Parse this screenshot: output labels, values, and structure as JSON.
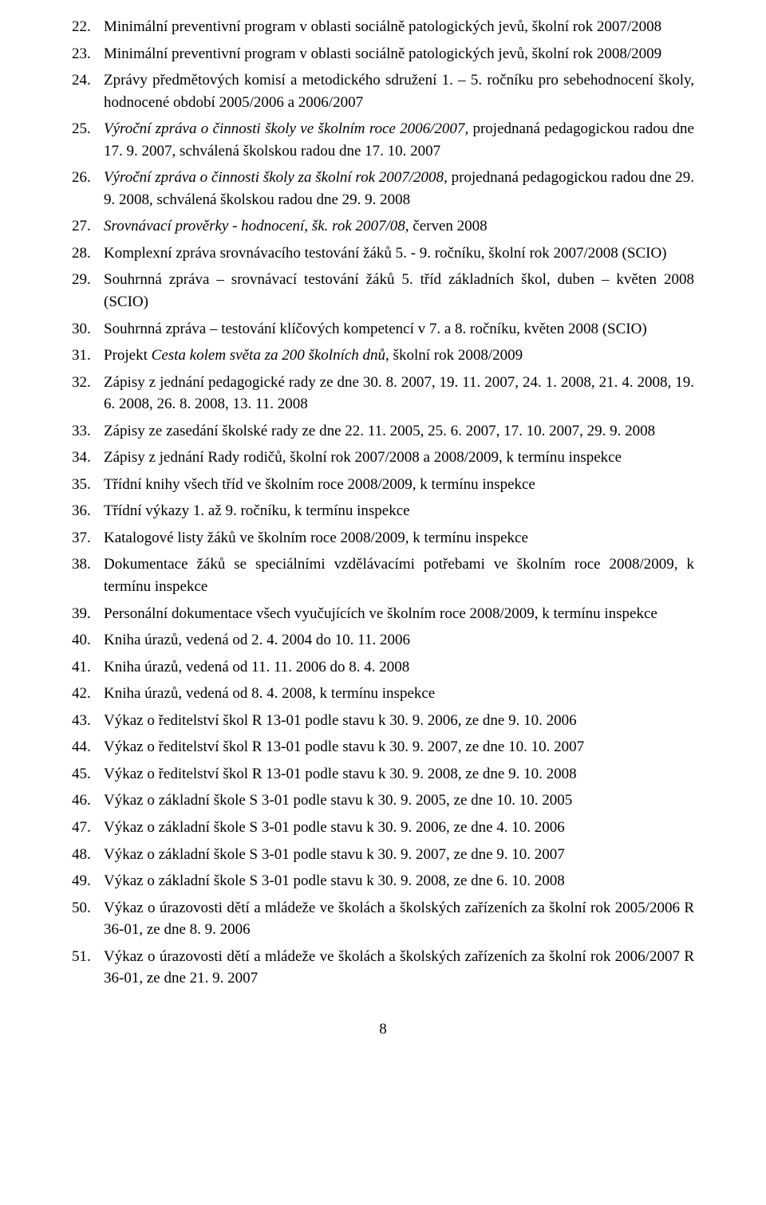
{
  "page_number": "8",
  "items": [
    {
      "n": "22.",
      "text": "Minimální preventivní program v oblasti sociálně patologických jevů, školní rok 2007/2008"
    },
    {
      "n": "23.",
      "text": "Minimální preventivní program v oblasti sociálně patologických jevů, školní rok 2008/2009"
    },
    {
      "n": "24.",
      "text": "Zprávy předmětových komisí a metodického sdružení 1. – 5. ročníku pro sebehodnocení školy, hodnocené období 2005/2006 a 2006/2007"
    },
    {
      "n": "25.",
      "runs": [
        {
          "t": "Výroční zpráva o činnosti školy ve školním roce 2006/2007",
          "italic": true
        },
        {
          "t": ", projednaná pedagogickou radou dne 17. 9. 2007, schválená školskou radou dne 17. 10. 2007",
          "italic": false
        }
      ]
    },
    {
      "n": "26.",
      "runs": [
        {
          "t": "Výroční zpráva o činnosti školy za školní rok 2007/2008",
          "italic": true
        },
        {
          "t": ", projednaná pedagogickou radou dne 29. 9. 2008, schválená školskou radou dne 29. 9. 2008",
          "italic": false
        }
      ]
    },
    {
      "n": "27.",
      "runs": [
        {
          "t": "Srovnávací prověrky - hodnocení, šk. rok 2007/08",
          "italic": true
        },
        {
          "t": ", červen 2008",
          "italic": false
        }
      ]
    },
    {
      "n": "28.",
      "text": "Komplexní zpráva srovnávacího testování žáků 5. - 9. ročníku, školní rok 2007/2008 (SCIO)"
    },
    {
      "n": "29.",
      "text": "Souhrnná zpráva – srovnávací testování žáků 5. tříd základních škol, duben – květen 2008 (SCIO)"
    },
    {
      "n": "30.",
      "text": "Souhrnná zpráva – testování klíčových kompetencí v 7. a 8. ročníku, květen 2008 (SCIO)"
    },
    {
      "n": "31.",
      "runs": [
        {
          "t": "Projekt ",
          "italic": false
        },
        {
          "t": "Cesta kolem světa za 200 školních dnů",
          "italic": true
        },
        {
          "t": ", školní rok 2008/2009",
          "italic": false
        }
      ]
    },
    {
      "n": "32.",
      "text": "Zápisy z jednání pedagogické rady ze dne 30. 8. 2007, 19. 11. 2007, 24. 1. 2008, 21. 4. 2008, 19. 6. 2008, 26. 8. 2008, 13. 11. 2008"
    },
    {
      "n": "33.",
      "text": "Zápisy ze zasedání školské rady ze dne 22. 11. 2005, 25. 6. 2007, 17. 10. 2007, 29. 9. 2008"
    },
    {
      "n": "34.",
      "text": "Zápisy z jednání Rady rodičů, školní rok 2007/2008 a 2008/2009, k termínu inspekce"
    },
    {
      "n": "35.",
      "text": "Třídní knihy všech tříd ve školním roce 2008/2009, k termínu inspekce"
    },
    {
      "n": "36.",
      "text": "Třídní výkazy 1. až 9. ročníku, k termínu inspekce"
    },
    {
      "n": "37.",
      "text": "Katalogové listy žáků ve školním roce 2008/2009, k termínu inspekce"
    },
    {
      "n": "38.",
      "text": "Dokumentace žáků se speciálními vzdělávacími potřebami ve školním roce 2008/2009, k termínu inspekce"
    },
    {
      "n": "39.",
      "text": "Personální dokumentace všech vyučujících ve školním roce 2008/2009, k termínu inspekce"
    },
    {
      "n": "40.",
      "text": "Kniha úrazů, vedená od 2. 4. 2004 do 10. 11. 2006"
    },
    {
      "n": "41.",
      "text": "Kniha úrazů, vedená od 11. 11. 2006 do 8. 4. 2008"
    },
    {
      "n": "42.",
      "text": "Kniha úrazů, vedená od 8. 4. 2008, k termínu inspekce"
    },
    {
      "n": "43.",
      "text": "Výkaz o ředitelství škol R 13-01 podle stavu k 30. 9. 2006, ze dne 9. 10. 2006"
    },
    {
      "n": "44.",
      "text": "Výkaz o ředitelství škol R 13-01 podle stavu k 30. 9. 2007, ze dne 10. 10. 2007"
    },
    {
      "n": "45.",
      "text": "Výkaz o ředitelství škol R 13-01 podle stavu k 30. 9. 2008, ze dne 9. 10. 2008"
    },
    {
      "n": "46.",
      "text": "Výkaz o základní škole S 3-01 podle stavu k 30. 9. 2005, ze dne 10. 10. 2005"
    },
    {
      "n": "47.",
      "text": "Výkaz o základní škole S 3-01 podle stavu k 30. 9. 2006, ze dne 4. 10. 2006"
    },
    {
      "n": "48.",
      "text": "Výkaz o základní škole S 3-01 podle stavu k 30. 9. 2007, ze dne 9. 10. 2007"
    },
    {
      "n": "49.",
      "text": "Výkaz o základní škole S 3-01 podle stavu k 30. 9. 2008, ze dne 6. 10. 2008"
    },
    {
      "n": "50.",
      "text": "Výkaz o úrazovosti dětí a mládeže ve školách a školských zařízeních za školní rok 2005/2006 R 36-01, ze dne 8. 9. 2006"
    },
    {
      "n": "51.",
      "text": "Výkaz o úrazovosti dětí a mládeže ve školách a školských zařízeních za školní rok 2006/2007 R 36-01, ze dne 21. 9. 2007"
    }
  ]
}
